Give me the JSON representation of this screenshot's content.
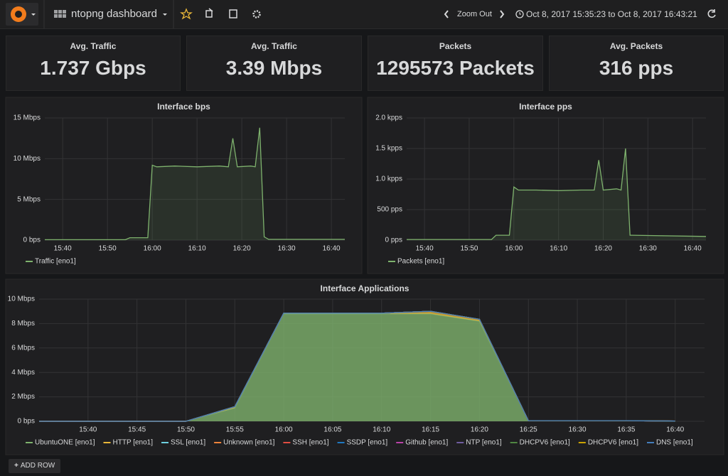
{
  "header": {
    "dashboard_title": "ntopng dashboard",
    "zoom_out": "Zoom Out",
    "time_range": "Oct 8, 2017 15:35:23 to Oct 8, 2017 16:43:21",
    "add_row": "ADD ROW"
  },
  "stats": [
    {
      "title": "Avg. Traffic",
      "value": "1.737 Gbps"
    },
    {
      "title": "Avg. Traffic",
      "value": "3.39 Mbps"
    },
    {
      "title": "Packets",
      "value": "1295573 Packets"
    },
    {
      "title": "Avg. Packets",
      "value": "316 pps"
    }
  ],
  "chart_data": [
    {
      "type": "area",
      "title": "Interface bps",
      "x": [
        "15:36",
        "15:54",
        "15:55",
        "15:59",
        "16:00",
        "16:01",
        "16:05",
        "16:10",
        "16:15",
        "16:17",
        "16:18",
        "16:19",
        "16:22",
        "16:23",
        "16:24",
        "16:25",
        "16:26",
        "16:43"
      ],
      "series": [
        {
          "name": "Traffic [eno1]",
          "color": "#7eb26d",
          "values": [
            0.05,
            0.05,
            0.3,
            0.3,
            9.2,
            9.0,
            9.1,
            9.0,
            9.1,
            9.0,
            12.5,
            9.0,
            9.1,
            9.0,
            13.8,
            0.4,
            0.1,
            0.1
          ]
        }
      ],
      "xlim": [
        "15:36",
        "16:43"
      ],
      "xticks": [
        "15:40",
        "15:50",
        "16:00",
        "16:10",
        "16:20",
        "16:30",
        "16:40"
      ],
      "ylim": [
        0,
        15
      ],
      "yticks": [
        {
          "value": 0,
          "label": "0 bps"
        },
        {
          "value": 5,
          "label": "5 Mbps"
        },
        {
          "value": 10,
          "label": "10 Mbps"
        },
        {
          "value": 15,
          "label": "15 Mbps"
        }
      ],
      "grid": true
    },
    {
      "type": "area",
      "title": "Interface pps",
      "x": [
        "15:36",
        "15:55",
        "15:56",
        "15:59",
        "16:00",
        "16:01",
        "16:05",
        "16:10",
        "16:15",
        "16:18",
        "16:19",
        "16:20",
        "16:23",
        "16:24",
        "16:25",
        "16:26",
        "16:43"
      ],
      "series": [
        {
          "name": "Packets [eno1]",
          "color": "#7eb26d",
          "values": [
            10,
            10,
            80,
            80,
            870,
            820,
            820,
            810,
            820,
            820,
            1310,
            820,
            840,
            820,
            1500,
            80,
            60
          ]
        }
      ],
      "xlim": [
        "15:36",
        "16:43"
      ],
      "xticks": [
        "15:40",
        "15:50",
        "16:00",
        "16:10",
        "16:20",
        "16:30",
        "16:40"
      ],
      "ylim": [
        0,
        2000
      ],
      "yticks": [
        {
          "value": 0,
          "label": "0 pps"
        },
        {
          "value": 500,
          "label": "500 pps"
        },
        {
          "value": 1000,
          "label": "1.0 kpps"
        },
        {
          "value": 1500,
          "label": "1.5 kpps"
        },
        {
          "value": 2000,
          "label": "2.0 kpps"
        }
      ],
      "grid": true
    },
    {
      "type": "area",
      "stacked": true,
      "title": "Interface Applications",
      "x": [
        "15:35",
        "15:40",
        "15:45",
        "15:50",
        "15:55",
        "16:00",
        "16:05",
        "16:10",
        "16:15",
        "16:20",
        "16:25",
        "16:30",
        "16:35",
        "16:40"
      ],
      "series": [
        {
          "name": "UbuntuONE [eno1]",
          "color": "#7eb26d",
          "values": [
            0,
            0,
            0,
            0,
            1.1,
            8.8,
            8.8,
            8.8,
            8.8,
            8.2,
            0.05,
            0.05,
            0.05,
            0.02
          ]
        },
        {
          "name": "HTTP [eno1]",
          "color": "#eab839",
          "values": [
            0,
            0,
            0,
            0,
            0.1,
            0.05,
            0.05,
            0.05,
            0.2,
            0.15,
            0,
            0,
            0,
            0
          ]
        },
        {
          "name": "SSL [eno1]",
          "color": "#6ed0e0",
          "values": [
            0,
            0,
            0,
            0,
            0,
            0,
            0,
            0,
            0,
            0,
            0,
            0,
            0,
            0
          ]
        },
        {
          "name": "Unknown [eno1]",
          "color": "#ef843c",
          "values": [
            0,
            0,
            0,
            0,
            0,
            0,
            0,
            0,
            0,
            0,
            0,
            0,
            0,
            0
          ]
        },
        {
          "name": "SSH [eno1]",
          "color": "#e24d42",
          "values": [
            0,
            0,
            0,
            0,
            0,
            0,
            0,
            0,
            0,
            0,
            0,
            0,
            0,
            0
          ]
        },
        {
          "name": "SSDP [eno1]",
          "color": "#1f78c1",
          "values": [
            0,
            0,
            0,
            0,
            0,
            0,
            0,
            0,
            0,
            0,
            0,
            0,
            0,
            0
          ]
        },
        {
          "name": "Github [eno1]",
          "color": "#ba43a9",
          "values": [
            0,
            0,
            0,
            0,
            0,
            0,
            0,
            0,
            0,
            0,
            0,
            0,
            0,
            0
          ]
        },
        {
          "name": "NTP [eno1]",
          "color": "#705da0",
          "values": [
            0,
            0,
            0,
            0,
            0,
            0,
            0,
            0,
            0,
            0,
            0,
            0,
            0,
            0
          ]
        },
        {
          "name": "DHCPV6 [eno1]",
          "color": "#508642",
          "values": [
            0,
            0,
            0,
            0,
            0,
            0,
            0,
            0,
            0,
            0,
            0,
            0,
            0,
            0
          ]
        },
        {
          "name": "DHCPV6 [eno1]",
          "color": "#cca300",
          "values": [
            0,
            0,
            0,
            0,
            0,
            0,
            0,
            0,
            0,
            0,
            0,
            0,
            0,
            0
          ]
        },
        {
          "name": "DNS [eno1]",
          "color": "#447ebc",
          "values": [
            0,
            0,
            0,
            0,
            0,
            0,
            0,
            0,
            0,
            0,
            0,
            0,
            0,
            0
          ]
        }
      ],
      "xlim": [
        "15:35",
        "16:43"
      ],
      "xticks": [
        "15:40",
        "15:45",
        "15:50",
        "15:55",
        "16:00",
        "16:05",
        "16:10",
        "16:15",
        "16:20",
        "16:25",
        "16:30",
        "16:35",
        "16:40"
      ],
      "ylim": [
        0,
        10
      ],
      "yticks": [
        {
          "value": 0,
          "label": "0 bps"
        },
        {
          "value": 2,
          "label": "2 Mbps"
        },
        {
          "value": 4,
          "label": "4 Mbps"
        },
        {
          "value": 6,
          "label": "6 Mbps"
        },
        {
          "value": 8,
          "label": "8 Mbps"
        },
        {
          "value": 10,
          "label": "10 Mbps"
        }
      ],
      "grid": true
    }
  ]
}
